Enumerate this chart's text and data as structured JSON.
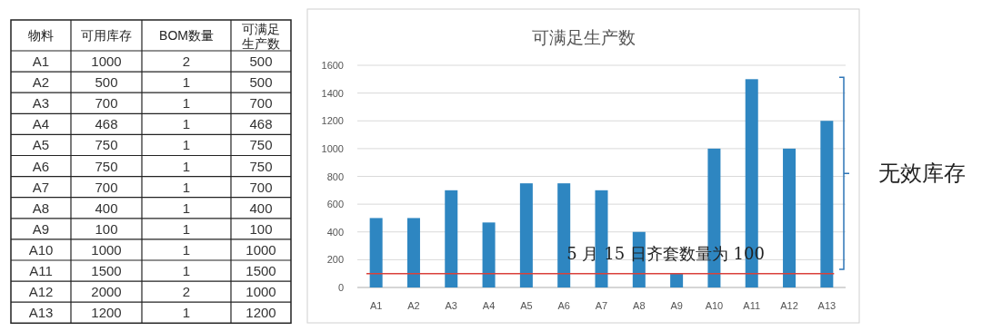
{
  "chart_data": [
    {
      "type": "other",
      "annotations": [
        "物料",
        "可用库存",
        "BOM数量",
        "可满足生产数",
        "A1",
        "1000",
        "2",
        "500",
        "A2",
        "500",
        "1",
        "500",
        "A3",
        "700",
        "1",
        "700",
        "A4",
        "468",
        "1",
        "468",
        "A5",
        "750",
        "1",
        "750",
        "A6",
        "750",
        "1",
        "750",
        "A7",
        "700",
        "1",
        "700",
        "A8",
        "400",
        "1",
        "400",
        "A9",
        "100",
        "1",
        "100",
        "A10",
        "1000",
        "1",
        "1000",
        "A11",
        "1500",
        "1",
        "1500",
        "A12",
        "2000",
        "2",
        "1000",
        "A13",
        "1200",
        "1",
        "1200"
      ]
    },
    {
      "type": "bar",
      "title": "可满足生产数",
      "categories": [
        "A1",
        "A2",
        "A3",
        "A4",
        "A5",
        "A6",
        "A7",
        "A8",
        "A9",
        "A10",
        "A11",
        "A12",
        "A13"
      ],
      "values": [
        500,
        500,
        700,
        468,
        750,
        750,
        700,
        400,
        100,
        1000,
        1500,
        1000,
        1200
      ],
      "color": "#2e86c1",
      "ylim": [
        0,
        1600
      ],
      "yticks": [
        0,
        200,
        400,
        600,
        800,
        1000,
        1200,
        1400,
        1600
      ],
      "grid": "y",
      "ref_lines": [
        {
          "axis": "y",
          "value": 100,
          "label": "5 月 15 日齐套数量为 100",
          "color": "#d9413b"
        }
      ],
      "annotations": [
        "无效库存"
      ]
    }
  ]
}
